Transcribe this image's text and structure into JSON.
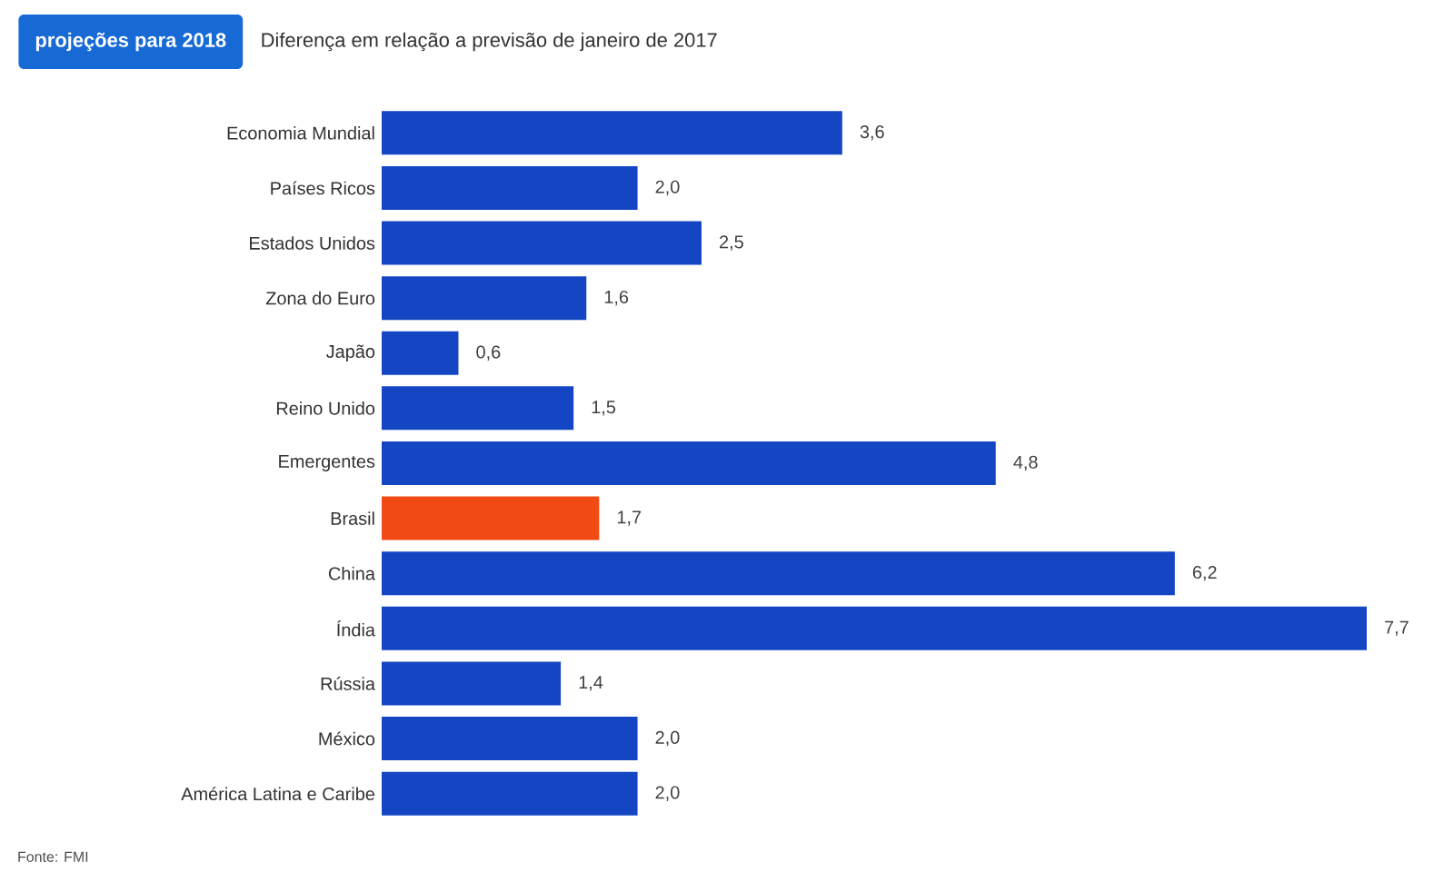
{
  "chart_data": {
    "type": "bar",
    "orientation": "horizontal",
    "title": "projeções para 2018",
    "subtitle": "Diferença em relação a previsão de janeiro de 2017",
    "categories": [
      "Economia Mundial",
      "Países Ricos",
      "Estados Unidos",
      "Zona do Euro",
      "Japão",
      "Reino Unido",
      "Emergentes",
      "Brasil",
      "China",
      "Índia",
      "Rússia",
      "México",
      "América Latina e Caribe"
    ],
    "values": [
      3.6,
      2.0,
      2.5,
      1.6,
      0.6,
      1.5,
      4.8,
      1.7,
      6.2,
      7.7,
      1.4,
      2.0,
      2.0
    ],
    "value_labels": [
      "3,6",
      "2,0",
      "2,5",
      "1,6",
      "0,6",
      "1,5",
      "4,8",
      "1,7",
      "6,2",
      "7,7",
      "1,4",
      "2,0",
      "2,0"
    ],
    "colors": [
      "#1446c4",
      "#1446c4",
      "#1446c4",
      "#1446c4",
      "#1446c4",
      "#1446c4",
      "#1446c4",
      "#f24a14",
      "#1446c4",
      "#1446c4",
      "#1446c4",
      "#1446c4",
      "#1446c4"
    ],
    "annotations": [
      "Fonte: FMI"
    ]
  }
}
